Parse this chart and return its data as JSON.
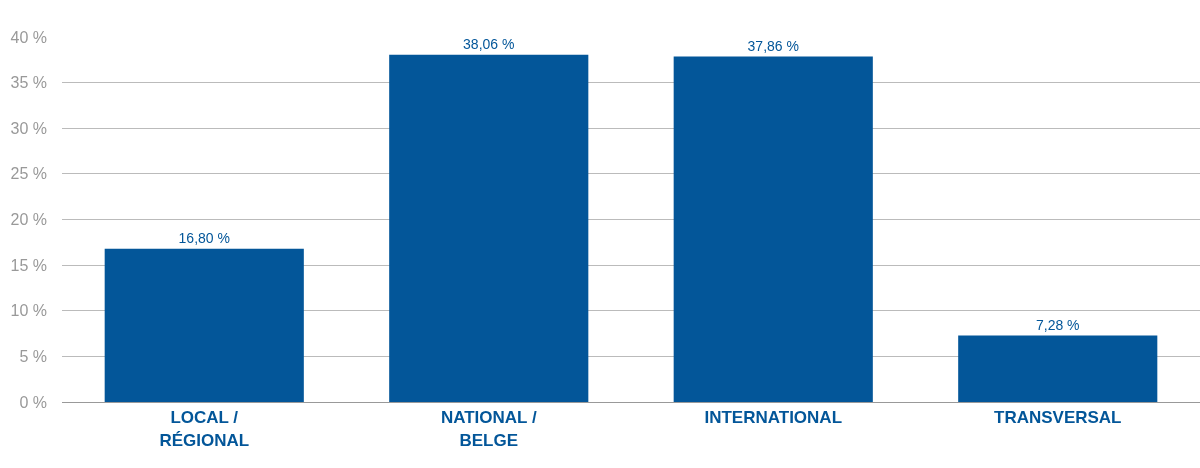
{
  "chart_data": {
    "type": "bar",
    "categories": [
      "LOCAL /\nRÉGIONAL",
      "NATIONAL /\nBELGE",
      "INTERNATIONAL",
      "TRANSVERSAL"
    ],
    "values": [
      16.8,
      38.06,
      37.86,
      7.28
    ],
    "value_labels": [
      "16,80 %",
      "38,06 %",
      "37,86 %",
      "7,28 %"
    ],
    "color": "#035699",
    "ylim": [
      0,
      40
    ],
    "yticks": [
      {
        "value": 0,
        "label": "0 %"
      },
      {
        "value": 5,
        "label": "5 %"
      },
      {
        "value": 10,
        "label": "10 %"
      },
      {
        "value": 15,
        "label": "15 %"
      },
      {
        "value": 20,
        "label": "20 %"
      },
      {
        "value": 25,
        "label": "25 %"
      },
      {
        "value": 30,
        "label": "30 %"
      },
      {
        "value": 35,
        "label": "35 %"
      },
      {
        "value": 40,
        "label": "40 %"
      }
    ],
    "grid": "y",
    "legend": false
  }
}
